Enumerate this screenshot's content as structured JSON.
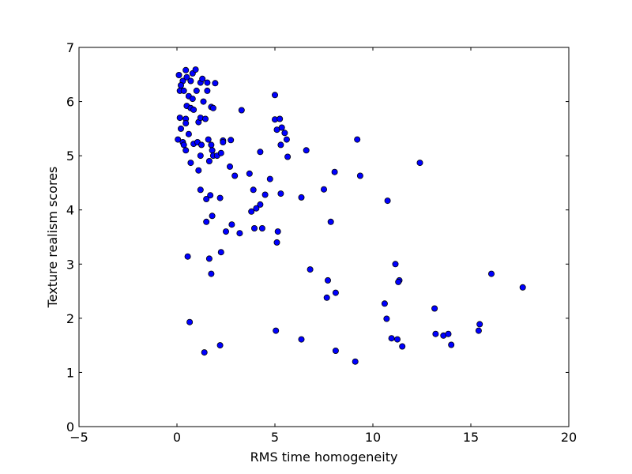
{
  "chart_data": {
    "type": "scatter",
    "xlabel": "RMS time homogeneity",
    "ylabel": "Texture realism scores",
    "xlim": [
      -5,
      20
    ],
    "ylim": [
      0,
      7
    ],
    "xticks": [
      -5,
      0,
      5,
      10,
      15,
      20
    ],
    "yticks": [
      0,
      1,
      2,
      3,
      4,
      5,
      6,
      7
    ],
    "xtick_labels": [
      "−5",
      "0",
      "5",
      "10",
      "15",
      "20"
    ],
    "ytick_labels": [
      "0",
      "1",
      "2",
      "3",
      "4",
      "5",
      "6",
      "7"
    ],
    "grid": false,
    "marker_color": "#0000ff",
    "marker_edge_color": "#000000",
    "points": [
      [
        0.1,
        6.49
      ],
      [
        0.3,
        6.38
      ],
      [
        0.45,
        6.58
      ],
      [
        0.8,
        6.52
      ],
      [
        0.95,
        6.59
      ],
      [
        0.15,
        6.2
      ],
      [
        0.2,
        6.3
      ],
      [
        0.35,
        6.2
      ],
      [
        0.5,
        6.45
      ],
      [
        0.7,
        6.38
      ],
      [
        0.6,
        6.1
      ],
      [
        0.8,
        6.05
      ],
      [
        1.0,
        6.2
      ],
      [
        1.2,
        6.35
      ],
      [
        1.3,
        6.42
      ],
      [
        1.55,
        6.35
      ],
      [
        1.95,
        6.34
      ],
      [
        0.5,
        5.92
      ],
      [
        0.7,
        5.88
      ],
      [
        0.85,
        5.85
      ],
      [
        1.35,
        6.0
      ],
      [
        1.55,
        6.2
      ],
      [
        1.75,
        5.9
      ],
      [
        1.85,
        5.88
      ],
      [
        3.3,
        5.84
      ],
      [
        0.15,
        5.7
      ],
      [
        0.45,
        5.68
      ],
      [
        0.45,
        5.6
      ],
      [
        1.1,
        5.62
      ],
      [
        1.2,
        5.7
      ],
      [
        1.45,
        5.68
      ],
      [
        0.2,
        5.5
      ],
      [
        0.6,
        5.4
      ],
      [
        0.05,
        5.3
      ],
      [
        0.3,
        5.25
      ],
      [
        0.35,
        5.2
      ],
      [
        0.45,
        5.1
      ],
      [
        0.85,
        5.22
      ],
      [
        1.05,
        5.25
      ],
      [
        1.25,
        5.2
      ],
      [
        1.6,
        5.3
      ],
      [
        1.75,
        5.2
      ],
      [
        1.8,
        5.1
      ],
      [
        2.35,
        5.28
      ],
      [
        2.35,
        5.25
      ],
      [
        2.75,
        5.29
      ],
      [
        1.2,
        5.0
      ],
      [
        1.65,
        4.9
      ],
      [
        1.85,
        5.0
      ],
      [
        2.05,
        5.0
      ],
      [
        2.25,
        5.05
      ],
      [
        0.7,
        4.87
      ],
      [
        1.1,
        4.73
      ],
      [
        2.7,
        4.8
      ],
      [
        2.95,
        4.63
      ],
      [
        5.0,
        6.12
      ],
      [
        5.0,
        5.67
      ],
      [
        5.25,
        5.68
      ],
      [
        5.1,
        5.48
      ],
      [
        5.35,
        5.52
      ],
      [
        5.5,
        5.42
      ],
      [
        5.6,
        5.3
      ],
      [
        5.3,
        5.2
      ],
      [
        5.65,
        4.98
      ],
      [
        4.25,
        5.07
      ],
      [
        6.6,
        5.1
      ],
      [
        3.7,
        4.67
      ],
      [
        4.75,
        4.57
      ],
      [
        3.9,
        4.37
      ],
      [
        4.5,
        4.28
      ],
      [
        5.3,
        4.3
      ],
      [
        1.2,
        4.37
      ],
      [
        1.7,
        4.27
      ],
      [
        1.5,
        4.2
      ],
      [
        2.2,
        4.22
      ],
      [
        4.25,
        4.1
      ],
      [
        4.05,
        4.03
      ],
      [
        3.8,
        3.97
      ],
      [
        1.8,
        3.89
      ],
      [
        1.5,
        3.78
      ],
      [
        2.8,
        3.73
      ],
      [
        3.95,
        3.66
      ],
      [
        4.35,
        3.66
      ],
      [
        2.5,
        3.6
      ],
      [
        3.2,
        3.57
      ],
      [
        5.15,
        3.6
      ],
      [
        5.1,
        3.4
      ],
      [
        2.25,
        3.22
      ],
      [
        0.55,
        3.14
      ],
      [
        1.65,
        3.1
      ],
      [
        1.75,
        2.82
      ],
      [
        9.2,
        5.3
      ],
      [
        12.4,
        4.87
      ],
      [
        8.05,
        4.7
      ],
      [
        9.35,
        4.63
      ],
      [
        7.5,
        4.38
      ],
      [
        6.35,
        4.23
      ],
      [
        10.75,
        4.17
      ],
      [
        7.85,
        3.78
      ],
      [
        6.8,
        2.9
      ],
      [
        11.15,
        3.0
      ],
      [
        16.05,
        2.82
      ],
      [
        11.35,
        2.7
      ],
      [
        11.3,
        2.67
      ],
      [
        7.7,
        2.7
      ],
      [
        8.1,
        2.47
      ],
      [
        7.65,
        2.38
      ],
      [
        17.65,
        2.57
      ],
      [
        10.6,
        2.27
      ],
      [
        13.15,
        2.18
      ],
      [
        10.7,
        1.99
      ],
      [
        15.45,
        1.89
      ],
      [
        13.2,
        1.71
      ],
      [
        13.6,
        1.68
      ],
      [
        13.85,
        1.71
      ],
      [
        15.4,
        1.77
      ],
      [
        10.95,
        1.63
      ],
      [
        11.25,
        1.61
      ],
      [
        11.5,
        1.48
      ],
      [
        14.0,
        1.51
      ],
      [
        0.65,
        1.93
      ],
      [
        5.05,
        1.77
      ],
      [
        6.35,
        1.61
      ],
      [
        2.2,
        1.5
      ],
      [
        1.4,
        1.37
      ],
      [
        8.1,
        1.4
      ],
      [
        9.1,
        1.2
      ]
    ]
  }
}
